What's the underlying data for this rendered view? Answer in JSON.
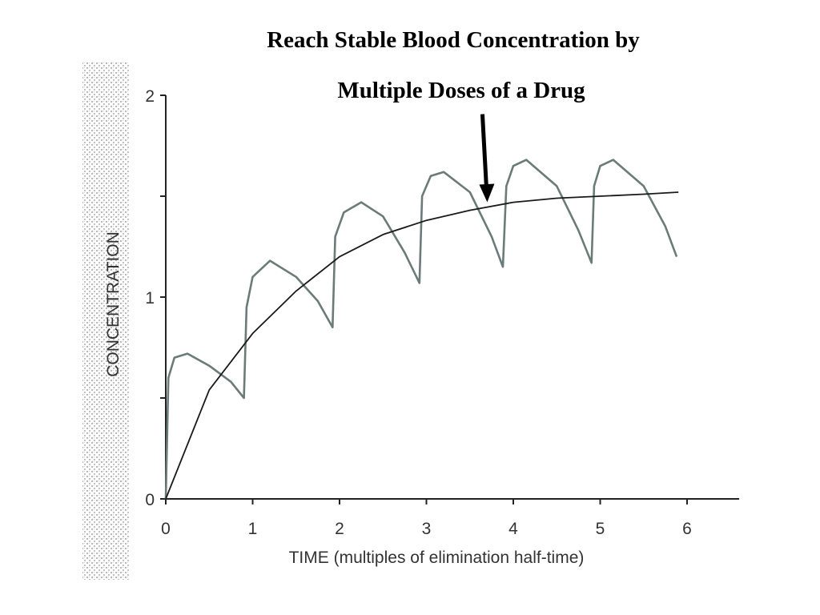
{
  "title_line1": "Reach Stable Blood Concentration by",
  "title_line2": "Multiple Doses of a Drug",
  "chart_data": {
    "type": "line",
    "title": "Reach Stable Blood Concentration by Multiple Doses of a Drug",
    "xlabel": "TIME (multiples of elimination half-time)",
    "ylabel": "CONCENTRATION",
    "xlim": [
      0,
      6.5
    ],
    "ylim": [
      0,
      2
    ],
    "x_ticks": [
      "0",
      "1",
      "2",
      "3",
      "4",
      "5",
      "6"
    ],
    "y_ticks": [
      "0",
      "1",
      "2"
    ],
    "grid": false,
    "legend": "none",
    "colors": {
      "sawtooth": "#6b7b78",
      "plateau": "#1a1a1a",
      "arrow": "#000000"
    },
    "series": [
      {
        "points": [
          [
            0,
            0
          ],
          [
            0.03,
            0.6
          ],
          [
            0.1,
            0.7
          ],
          [
            0.25,
            0.72
          ],
          [
            0.5,
            0.66
          ],
          [
            0.75,
            0.58
          ],
          [
            0.9,
            0.5
          ],
          [
            0.93,
            0.95
          ],
          [
            1.0,
            1.1
          ],
          [
            1.2,
            1.18
          ],
          [
            1.5,
            1.1
          ],
          [
            1.75,
            0.98
          ],
          [
            1.92,
            0.85
          ],
          [
            1.95,
            1.3
          ],
          [
            2.05,
            1.42
          ],
          [
            2.25,
            1.47
          ],
          [
            2.5,
            1.4
          ],
          [
            2.75,
            1.22
          ],
          [
            2.92,
            1.07
          ],
          [
            2.95,
            1.5
          ],
          [
            3.05,
            1.6
          ],
          [
            3.2,
            1.62
          ],
          [
            3.5,
            1.52
          ],
          [
            3.75,
            1.3
          ],
          [
            3.88,
            1.15
          ],
          [
            3.92,
            1.55
          ],
          [
            4.0,
            1.65
          ],
          [
            4.15,
            1.68
          ],
          [
            4.5,
            1.55
          ],
          [
            4.75,
            1.33
          ],
          [
            4.9,
            1.17
          ],
          [
            4.93,
            1.55
          ],
          [
            5.0,
            1.65
          ],
          [
            5.15,
            1.68
          ],
          [
            5.5,
            1.55
          ],
          [
            5.75,
            1.35
          ],
          [
            5.88,
            1.2
          ]
        ]
      },
      {
        "points": [
          [
            0,
            0
          ],
          [
            0.5,
            0.54
          ],
          [
            1,
            0.82
          ],
          [
            1.5,
            1.03
          ],
          [
            2,
            1.2
          ],
          [
            2.5,
            1.31
          ],
          [
            3,
            1.38
          ],
          [
            3.5,
            1.43
          ],
          [
            4,
            1.47
          ],
          [
            4.5,
            1.49
          ],
          [
            5,
            1.5
          ],
          [
            5.5,
            1.51
          ],
          [
            5.9,
            1.52
          ]
        ]
      }
    ],
    "annotation": {
      "type": "arrow",
      "points_to": [
        3.7,
        1.47
      ]
    }
  }
}
